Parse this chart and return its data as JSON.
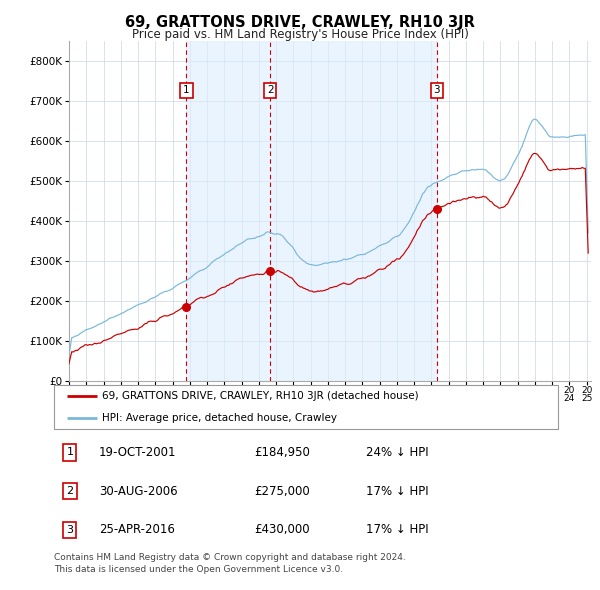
{
  "title": "69, GRATTONS DRIVE, CRAWLEY, RH10 3JR",
  "subtitle": "Price paid vs. HM Land Registry's House Price Index (HPI)",
  "sale_dates": [
    "2001-10-19",
    "2006-08-30",
    "2016-04-25"
  ],
  "sale_prices": [
    184950,
    275000,
    430000
  ],
  "sale_labels": [
    "1",
    "2",
    "3"
  ],
  "legend_entries": [
    "69, GRATTONS DRIVE, CRAWLEY, RH10 3JR (detached house)",
    "HPI: Average price, detached house, Crawley"
  ],
  "table_rows": [
    {
      "num": "1",
      "date": "19-OCT-2001",
      "price": "£184,950",
      "change": "24% ↓ HPI"
    },
    {
      "num": "2",
      "date": "30-AUG-2006",
      "price": "£275,000",
      "change": "17% ↓ HPI"
    },
    {
      "num": "3",
      "date": "25-APR-2016",
      "price": "£430,000",
      "change": "17% ↓ HPI"
    }
  ],
  "footnote": "Contains HM Land Registry data © Crown copyright and database right 2024.\nThis data is licensed under the Open Government Licence v3.0.",
  "hpi_color": "#7ab8d9",
  "price_color": "#cc0000",
  "vline_color": "#cc0000",
  "span_color": "#ddeeff",
  "grid_color": "#c8d8e8",
  "background_color": "#ffffff",
  "ylim": [
    0,
    850000
  ],
  "yticks": [
    0,
    100000,
    200000,
    300000,
    400000,
    500000,
    600000,
    700000,
    800000
  ],
  "start_year": 1995,
  "end_year": 2025
}
